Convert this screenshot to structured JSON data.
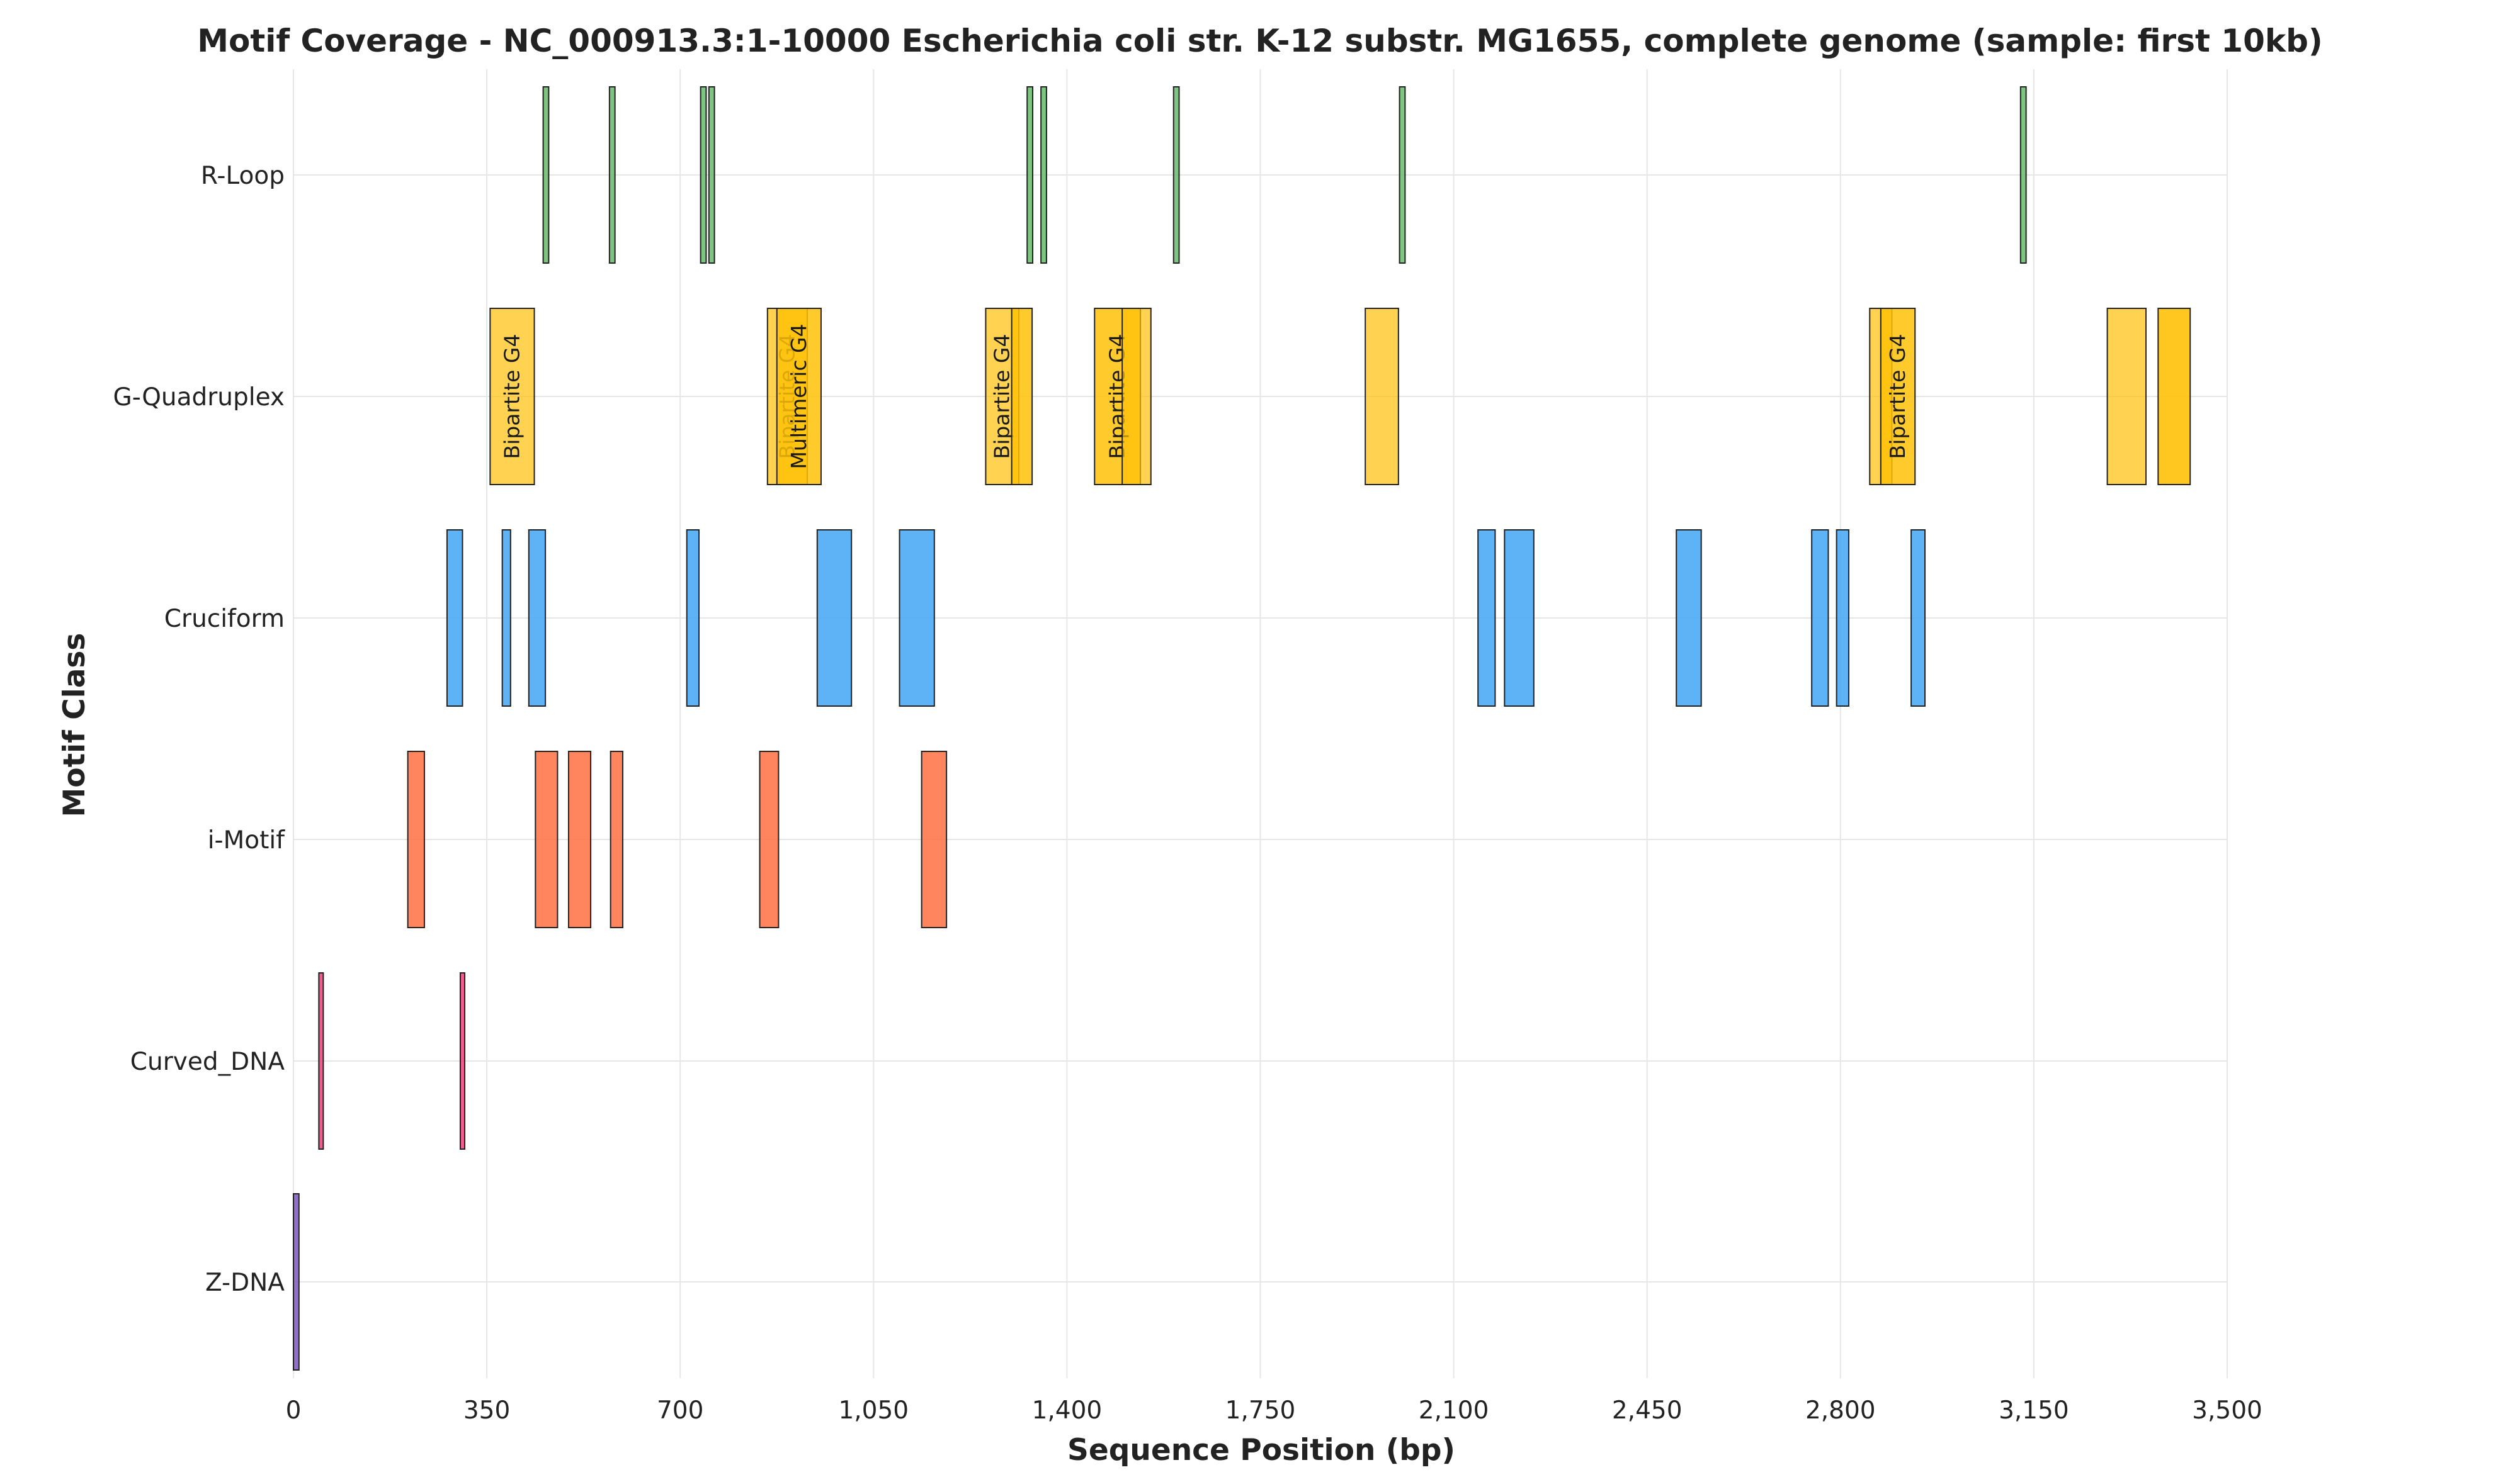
{
  "chart_data": {
    "type": "bar",
    "orientation": "horizontal-intervals",
    "title": "Motif Coverage - NC_000913.3:1-10000 Escherichia coli str. K-12 substr. MG1655, complete genome (sample: first 10kb)",
    "xlabel": "Sequence Position (bp)",
    "ylabel": "Motif Class",
    "xlim": [
      0,
      3500
    ],
    "xticks": [
      0,
      350,
      700,
      1050,
      1400,
      1750,
      2100,
      2450,
      2800,
      3150,
      3500
    ],
    "xtick_labels": [
      "0",
      "350",
      "700",
      "1,050",
      "1,400",
      "1,750",
      "2,100",
      "2,450",
      "2,800",
      "3,150",
      "3,500"
    ],
    "grid": true,
    "categories": [
      "R-Loop",
      "G-Quadruplex",
      "Cruciform",
      "i-Motif",
      "Curved_DNA",
      "Z-DNA"
    ],
    "series": [
      {
        "category": "R-Loop",
        "color": "#66bb6a",
        "intervals": [
          [
            452,
            462
          ],
          [
            572,
            582
          ],
          [
            737,
            747
          ],
          [
            752,
            762
          ],
          [
            1328,
            1338
          ],
          [
            1353,
            1363
          ],
          [
            1593,
            1603
          ],
          [
            2002,
            2012
          ],
          [
            3126,
            3136
          ]
        ]
      },
      {
        "category": "G-Quadruplex",
        "color": "#ffc107",
        "intervals": [
          {
            "start": 356,
            "end": 436,
            "label": "Bipartite G4",
            "opacity": 0.7
          },
          {
            "start": 858,
            "end": 930,
            "label": "Bipartite G4",
            "opacity": 0.7
          },
          {
            "start": 875,
            "end": 955,
            "label": "Multimeric G4",
            "opacity": 0.85
          },
          {
            "start": 1253,
            "end": 1313,
            "label": "Bipartite G4",
            "opacity": 0.7
          },
          {
            "start": 1300,
            "end": 1337,
            "label": "",
            "opacity": 0.85
          },
          {
            "start": 1450,
            "end": 1533,
            "label": "Bipartite G4",
            "opacity": 0.85
          },
          {
            "start": 1500,
            "end": 1552,
            "label": "",
            "opacity": 0.7
          },
          {
            "start": 1940,
            "end": 2000,
            "label": "",
            "opacity": 0.7
          },
          {
            "start": 2853,
            "end": 2893,
            "label": "",
            "opacity": 0.7
          },
          {
            "start": 2873,
            "end": 2935,
            "label": "Bipartite G4",
            "opacity": 0.85
          },
          {
            "start": 3283,
            "end": 3353,
            "label": "",
            "opacity": 0.7
          },
          {
            "start": 3375,
            "end": 3433,
            "label": "",
            "opacity": 0.9
          }
        ]
      },
      {
        "category": "Cruciform",
        "color": "#42a5f5",
        "intervals": [
          [
            278,
            306
          ],
          [
            378,
            393
          ],
          [
            426,
            456
          ],
          [
            712,
            734
          ],
          [
            948,
            1010
          ],
          [
            1097,
            1160
          ],
          [
            2144,
            2175
          ],
          [
            2192,
            2245
          ],
          [
            2503,
            2548
          ],
          [
            2748,
            2778
          ],
          [
            2793,
            2815
          ],
          [
            2928,
            2953
          ]
        ]
      },
      {
        "category": "i-Motif",
        "color": "#ff7043",
        "intervals": [
          [
            207,
            237
          ],
          [
            438,
            478
          ],
          [
            498,
            538
          ],
          [
            574,
            596
          ],
          [
            844,
            878
          ],
          [
            1137,
            1182
          ]
        ]
      },
      {
        "category": "Curved_DNA",
        "color": "#ec407a",
        "intervals": [
          [
            46,
            54
          ],
          [
            302,
            310
          ]
        ]
      },
      {
        "category": "Z-DNA",
        "color": "#7e57c2",
        "intervals": [
          [
            0,
            10
          ]
        ]
      }
    ]
  }
}
